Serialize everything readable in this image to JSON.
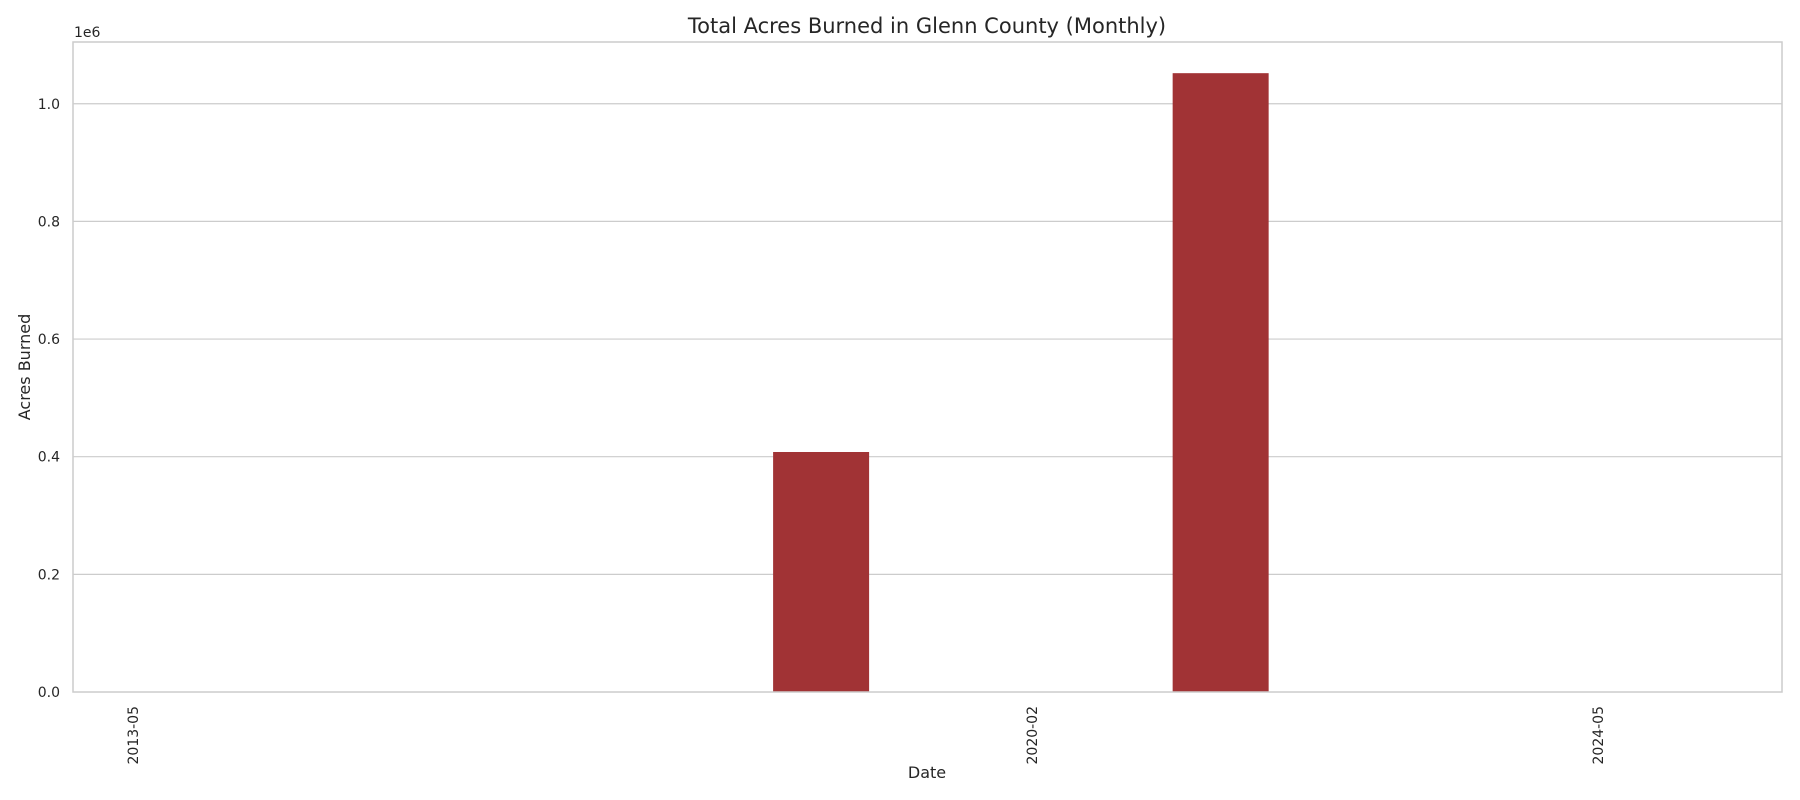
{
  "chart_data": {
    "type": "bar",
    "title": "Total Acres Burned in Glenn County (Monthly)",
    "xlabel": "Date",
    "ylabel": "Acres Burned",
    "y_offset_label": "1e6",
    "x_tick_labels": [
      "2013-05",
      "2020-02",
      "2024-05"
    ],
    "y_tick_labels": [
      "0.0",
      "0.2",
      "0.4",
      "0.6",
      "0.8",
      "1.0"
    ],
    "y_ticks": [
      0,
      200000,
      400000,
      600000,
      800000,
      1000000
    ],
    "ylim": [
      0,
      1105000
    ],
    "bars": [
      {
        "date": "2018-07",
        "value": 408000
      },
      {
        "date": "2021-07",
        "value": 1052000
      }
    ],
    "bar_color": "#a13335",
    "grid": true,
    "grid_axis": "y",
    "legend": "none"
  }
}
